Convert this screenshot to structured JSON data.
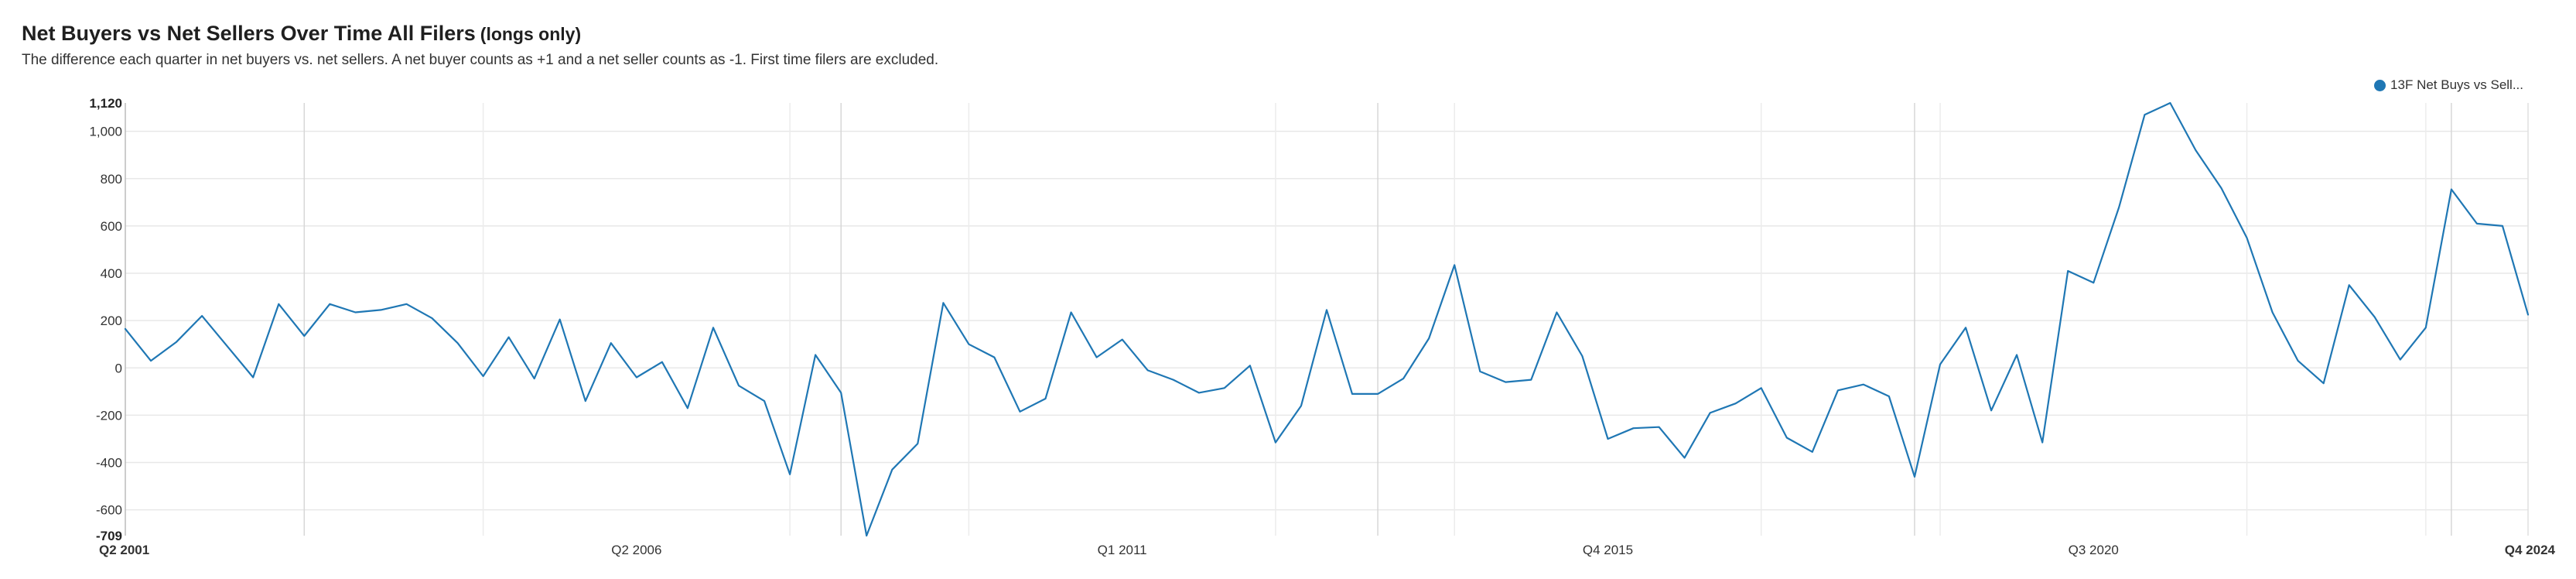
{
  "header": {
    "title": "Net Buyers vs Net Sellers Over Time All Filers",
    "title_qualifier": "(longs only)",
    "subtitle": "The difference each quarter in net buyers vs. net sellers. A net buyer counts as +1 and a net seller counts as -1. First time filers are excluded."
  },
  "legend": {
    "label": "13F Net Buys vs Sell...",
    "color": "#1f77b4"
  },
  "chart_data": {
    "type": "line",
    "title": "Net Buyers vs Net Sellers Over Time All Filers",
    "xlabel": "",
    "ylabel": "",
    "ylim": [
      -709,
      1120
    ],
    "yticks": [
      -600,
      -400,
      -200,
      0,
      200,
      400,
      600,
      800,
      1000
    ],
    "ymin_label": "-709",
    "ymax_label": "1,120",
    "xtick_labels": [
      {
        "label": "Q2 2001",
        "index": 0,
        "bold": true
      },
      {
        "label": "Q2 2006",
        "index": 20,
        "bold": false
      },
      {
        "label": "Q1 2011",
        "index": 39,
        "bold": false
      },
      {
        "label": "Q4 2015",
        "index": 58,
        "bold": false
      },
      {
        "label": "Q3 2020",
        "index": 77,
        "bold": false
      },
      {
        "label": "Q4 2024",
        "index": 94,
        "bold": true
      }
    ],
    "grid": true,
    "legend_position": "top-right",
    "x": [
      "Q2 2001",
      "Q3 2001",
      "Q4 2001",
      "Q1 2002",
      "Q2 2002",
      "Q3 2002",
      "Q4 2002",
      "Q1 2003",
      "Q2 2003",
      "Q3 2003",
      "Q4 2003",
      "Q1 2004",
      "Q2 2004",
      "Q3 2004",
      "Q4 2004",
      "Q1 2005",
      "Q2 2005",
      "Q3 2005",
      "Q4 2005",
      "Q1 2006",
      "Q2 2006",
      "Q3 2006",
      "Q4 2006",
      "Q1 2007",
      "Q2 2007",
      "Q3 2007",
      "Q4 2007",
      "Q1 2008",
      "Q2 2008",
      "Q3 2008",
      "Q4 2008",
      "Q1 2009",
      "Q2 2009",
      "Q3 2009",
      "Q4 2009",
      "Q1 2010",
      "Q2 2010",
      "Q3 2010",
      "Q4 2010",
      "Q1 2011",
      "Q2 2011",
      "Q3 2011",
      "Q4 2011",
      "Q1 2012",
      "Q2 2012",
      "Q3 2012",
      "Q4 2012",
      "Q1 2013",
      "Q2 2013",
      "Q3 2013",
      "Q4 2013",
      "Q1 2014",
      "Q2 2014",
      "Q3 2014",
      "Q4 2014",
      "Q1 2015",
      "Q2 2015",
      "Q3 2015",
      "Q4 2015",
      "Q1 2016",
      "Q2 2016",
      "Q3 2016",
      "Q4 2016",
      "Q1 2017",
      "Q2 2017",
      "Q3 2017",
      "Q4 2017",
      "Q1 2018",
      "Q2 2018",
      "Q3 2018",
      "Q4 2018",
      "Q1 2019",
      "Q2 2019",
      "Q3 2019",
      "Q4 2019",
      "Q1 2020",
      "Q2 2020",
      "Q3 2020",
      "Q4 2020",
      "Q1 2021",
      "Q2 2021",
      "Q3 2021",
      "Q4 2021",
      "Q1 2022",
      "Q2 2022",
      "Q3 2022",
      "Q4 2022",
      "Q1 2023",
      "Q2 2023",
      "Q3 2023",
      "Q4 2023",
      "Q1 2024",
      "Q2 2024",
      "Q3 2024",
      "Q4 2024"
    ],
    "series": [
      {
        "name": "13F Net Buys vs Sell...",
        "color": "#1f77b4",
        "values": [
          165,
          30,
          110,
          220,
          90,
          -40,
          270,
          135,
          270,
          235,
          245,
          270,
          210,
          105,
          -35,
          130,
          -45,
          205,
          -140,
          105,
          -40,
          25,
          -170,
          170,
          -75,
          -140,
          -450,
          55,
          -105,
          -709,
          -430,
          -320,
          275,
          100,
          45,
          -185,
          -130,
          235,
          45,
          120,
          -10,
          -50,
          -105,
          -85,
          10,
          -315,
          -160,
          245,
          -110,
          -110,
          -45,
          125,
          435,
          -15,
          -60,
          -50,
          235,
          50,
          -300,
          -255,
          -250,
          -380,
          -190,
          -150,
          -85,
          -295,
          -355,
          -95,
          -70,
          -120,
          -460,
          15,
          170,
          -180,
          55,
          -315,
          410,
          360,
          680,
          1070,
          1120,
          920,
          760,
          550,
          235,
          30,
          -65,
          350,
          215,
          35,
          170,
          755,
          610,
          600,
          225
        ]
      }
    ]
  }
}
